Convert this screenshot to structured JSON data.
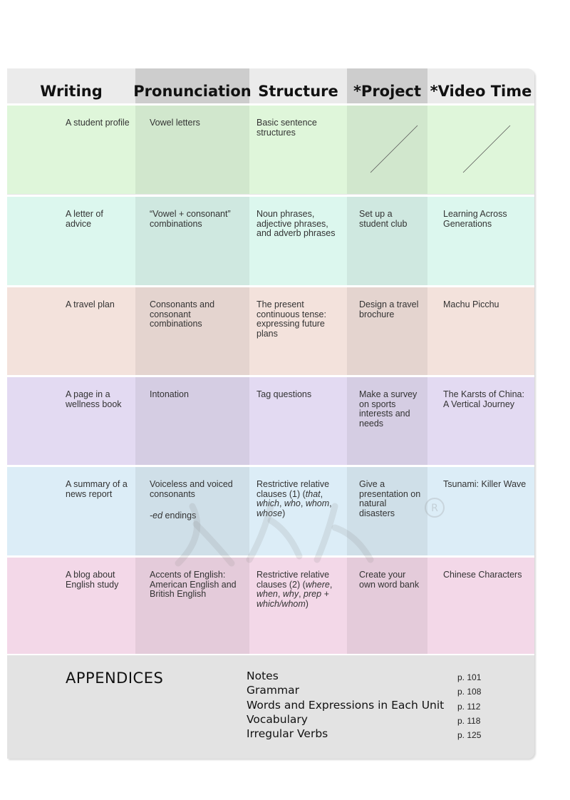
{
  "columns": [
    {
      "label": "Writing"
    },
    {
      "label": "Pronunciation"
    },
    {
      "label": "Structure"
    },
    {
      "label": "*Project"
    },
    {
      "label": "*Video Time"
    }
  ],
  "rows": [
    {
      "color": "#dff6da",
      "writing": "A student profile",
      "pronunciation": "Vowel letters",
      "structure": "Basic sentence structures",
      "project": "",
      "video": ""
    },
    {
      "color": "#dcf7ee",
      "writing": "A letter of advice",
      "pronunciation": "“Vowel + consonant” combinations",
      "structure": "Noun phrases, adjective phrases, and adverb phrases",
      "project": "Set up a student club",
      "video": "Learning Across Generations"
    },
    {
      "color": "#f3e2dc",
      "writing": "A travel plan",
      "pronunciation": "Consonants and consonant combinations",
      "structure": "The present continuous tense: expressing future plans",
      "project": "Design a travel brochure",
      "video": "Machu Picchu"
    },
    {
      "color": "#e3daf2",
      "writing": "A page in a wellness book",
      "pronunciation": "Intonation",
      "structure": "Tag questions",
      "project": "Make a survey on sports interests and needs",
      "video": "The Karsts of China: A Vertical Journey"
    },
    {
      "color": "#dcedf7",
      "writing": "A summary of a news report",
      "pronunciation": "Voiceless and voiced consonants",
      "pronunciation_extra": "-ed endings",
      "structure_parts": [
        "Restrictive relative clauses (1) (",
        "that",
        ", ",
        "which",
        ", ",
        "who",
        ", ",
        "whom",
        ", ",
        "whose",
        ")"
      ],
      "project": "Give a presentation on natural disasters",
      "video": "Tsunami: Killer Wave"
    },
    {
      "color": "#f3d8e8",
      "writing": "A blog about English study",
      "pronunciation": "Accents of English: American English and British English",
      "structure_parts": [
        "Restrictive relative clauses (2) (",
        "where",
        ", ",
        "when",
        ", ",
        "why",
        ", ",
        "prep + which/whom",
        ")"
      ],
      "project": "Create your own word bank",
      "video": "Chinese Characters"
    }
  ],
  "appendices": {
    "title": "APPENDICES",
    "items": [
      {
        "label": "Notes",
        "page": "p. 101"
      },
      {
        "label": "Grammar",
        "page": "p. 108"
      },
      {
        "label": "Words and Expressions in Each Unit",
        "page": "p. 112"
      },
      {
        "label": "Vocabulary",
        "page": "p. 118"
      },
      {
        "label": "Irregular Verbs",
        "page": "p. 125"
      }
    ]
  },
  "colors": {
    "header_light": "#ebebeb",
    "header_dark": "#cdcdcd",
    "appendix_bg": "#e3e3e3"
  }
}
